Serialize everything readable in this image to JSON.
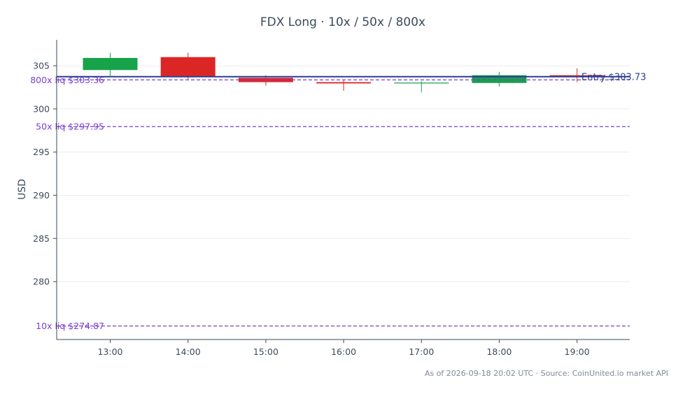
{
  "chart_data": {
    "type": "candlestick",
    "title": "FDX Long · 10x / 50x / 800x",
    "ylabel": "USD",
    "xlabel": "",
    "ylim": [
      273.3,
      308
    ],
    "yticks": [
      280,
      285,
      290,
      295,
      300,
      305
    ],
    "grid": true,
    "categories": [
      "13:00",
      "14:00",
      "15:00",
      "16:00",
      "17:00",
      "18:00",
      "19:00"
    ],
    "candles": [
      {
        "time": "13:00",
        "open": 304.5,
        "high": 306.5,
        "low": 303.7,
        "close": 305.9
      },
      {
        "time": "14:00",
        "open": 306.0,
        "high": 306.5,
        "low": 303.4,
        "close": 303.8
      },
      {
        "time": "15:00",
        "open": 303.6,
        "high": 303.9,
        "low": 302.7,
        "close": 303.1
      },
      {
        "time": "16:00",
        "open": 303.1,
        "high": 303.3,
        "low": 302.1,
        "close": 302.95
      },
      {
        "time": "17:00",
        "open": 302.95,
        "high": 303.2,
        "low": 301.9,
        "close": 303.05
      },
      {
        "time": "18:00",
        "open": 303.0,
        "high": 304.3,
        "low": 302.6,
        "close": 303.9
      },
      {
        "time": "19:00",
        "open": 303.9,
        "high": 304.7,
        "low": 303.1,
        "close": 303.73
      }
    ],
    "entry": {
      "label": "Entry $303.73",
      "value": 303.73
    },
    "liquidations": [
      {
        "label": "800x liq $303.36",
        "value": 303.36
      },
      {
        "label": "50x liq $297.95",
        "value": 297.95
      },
      {
        "label": "10x liq $274.87",
        "value": 274.87
      }
    ],
    "colors": {
      "up": "#16a34a",
      "down": "#dc2626",
      "entry": "#2a3e8f",
      "liq": "#7b3fd1",
      "axis": "#3d4a5c",
      "grid": "#ececec"
    }
  },
  "footer": "As of 2026-09-18 20:02 UTC · Source: CoinUnited.io market API"
}
